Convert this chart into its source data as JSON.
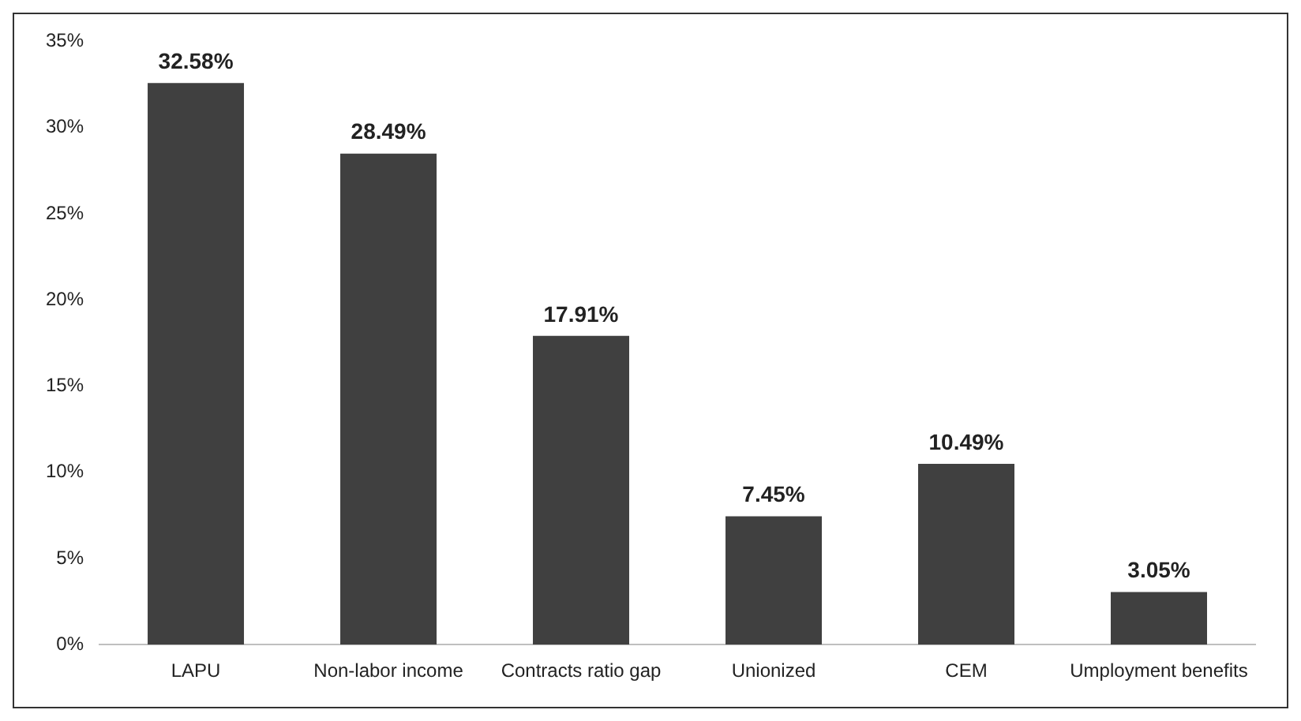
{
  "chart_data": {
    "type": "bar",
    "categories": [
      "LAPU",
      "Non-labor income",
      "Contracts ratio gap",
      "Unionized",
      "CEM",
      "Umployment benefits"
    ],
    "values": [
      32.58,
      28.49,
      17.91,
      7.45,
      10.49,
      3.05
    ],
    "value_labels": [
      "32.58%",
      "28.49%",
      "17.91%",
      "7.45%",
      "10.49%",
      "3.05%"
    ],
    "color": "#404040",
    "ylim": [
      0,
      35
    ],
    "yticks": [
      {
        "value": 0,
        "label": "0%"
      },
      {
        "value": 5,
        "label": "5%"
      },
      {
        "value": 10,
        "label": "10%"
      },
      {
        "value": 15,
        "label": "15%"
      },
      {
        "value": 20,
        "label": "20%"
      },
      {
        "value": 25,
        "label": "25%"
      },
      {
        "value": 30,
        "label": "30%"
      },
      {
        "value": 35,
        "label": "35%"
      }
    ],
    "grid": false,
    "legend": false
  }
}
